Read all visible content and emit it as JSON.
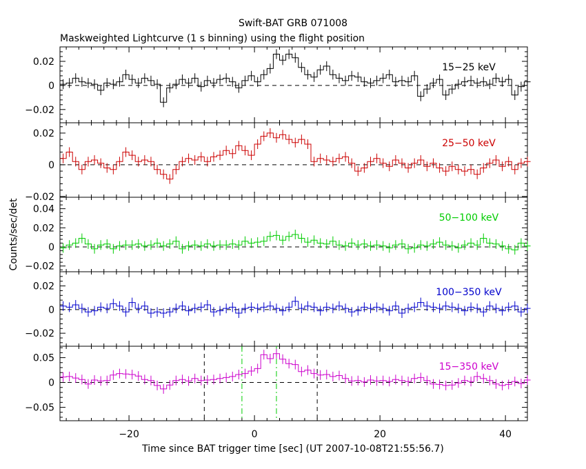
{
  "chart_data": {
    "type": "line",
    "title": "Swift-BAT GRB 071008",
    "subtitle": "Maskweighted Lightcurve (1 s binning) using the flight position",
    "xlabel": "Time since BAT trigger time [sec] (UT 2007-10-08T21:55:56.7)",
    "ylabel": "Counts/sec/det",
    "xlim": [
      -31,
      43.5
    ],
    "xticks": [
      -20,
      0,
      20,
      40
    ],
    "xtick_labels": [
      "−20",
      "0",
      "20",
      "40"
    ],
    "grid": false,
    "panels": [
      {
        "name": "15−25 keV",
        "color": "#000000",
        "ylim": [
          -0.031,
          0.032
        ],
        "yticks": [
          -0.02,
          0,
          0.02
        ],
        "ytick_labels": [
          "−0.02",
          "0",
          "0.02"
        ],
        "x_start": -31,
        "values": [
          0.001,
          0.002,
          0.006,
          0.003,
          0.002,
          0.001,
          -0.004,
          0.002,
          0.001,
          0.003,
          0.009,
          0.005,
          0.002,
          0.006,
          0.004,
          0.001,
          -0.014,
          -0.002,
          0.001,
          0.005,
          0.002,
          0.006,
          -0.001,
          0.004,
          0.002,
          0.005,
          0.006,
          0.003,
          -0.002,
          0.004,
          0.008,
          0.003,
          0.009,
          0.014,
          0.026,
          0.021,
          0.026,
          0.023,
          0.015,
          0.009,
          0.007,
          0.013,
          0.016,
          0.009,
          0.006,
          0.004,
          0.008,
          0.007,
          0.003,
          0.002,
          0.004,
          0.006,
          0.009,
          0.003,
          0.004,
          0.003,
          0.008,
          -0.009,
          -0.003,
          0.002,
          0.005,
          -0.008,
          -0.003,
          0.001,
          0.003,
          0.004,
          0.002,
          0.003,
          0.001,
          0.006,
          0.003,
          0.005,
          -0.008,
          -0.001,
          0.003
        ]
      },
      {
        "name": "25−50 keV",
        "color": "#cc0000",
        "ylim": [
          -0.0205,
          0.0265
        ],
        "yticks": [
          -0.02,
          0,
          0.02
        ],
        "ytick_labels": [
          "−0.02",
          "0",
          "0.02"
        ],
        "x_start": -31,
        "values": [
          0.004,
          0.008,
          0.002,
          -0.003,
          0.002,
          0.003,
          0.001,
          -0.002,
          -0.003,
          0.002,
          0.008,
          0.006,
          0.002,
          0.003,
          0.002,
          -0.003,
          -0.006,
          -0.009,
          -0.003,
          0.002,
          0.004,
          0.003,
          0.005,
          0.002,
          0.005,
          0.006,
          0.009,
          0.007,
          0.012,
          0.009,
          0.006,
          0.013,
          0.018,
          0.02,
          0.017,
          0.019,
          0.016,
          0.014,
          0.016,
          0.013,
          0.002,
          0.004,
          0.003,
          0.002,
          0.004,
          0.005,
          0.001,
          -0.004,
          -0.002,
          0.002,
          0.004,
          0.001,
          -0.001,
          0.003,
          0.001,
          -0.002,
          0.001,
          0.003,
          -0.001,
          0.001,
          -0.002,
          -0.004,
          -0.001,
          -0.003,
          -0.004,
          -0.003,
          -0.006,
          -0.002,
          0.001,
          0.003,
          -0.001,
          0.002,
          -0.003,
          0.001,
          0.002
        ]
      },
      {
        "name": "50−100 keV",
        "color": "#00cc00",
        "ylim": [
          -0.026,
          0.052
        ],
        "yticks": [
          -0.02,
          0,
          0.02,
          0.04
        ],
        "ytick_labels": [
          "−0.02",
          "0",
          "0.02",
          "0.04"
        ],
        "x_start": -31,
        "values": [
          -0.001,
          0.002,
          0.004,
          0.009,
          0.003,
          -0.002,
          0.002,
          0.003,
          -0.002,
          0.001,
          0.002,
          0.002,
          0.003,
          0.001,
          0.002,
          0.004,
          0.001,
          0.003,
          0.006,
          -0.002,
          0.001,
          0.002,
          0.001,
          0.003,
          0.001,
          0.002,
          0.002,
          0.003,
          0.002,
          0.006,
          0.004,
          0.005,
          0.006,
          0.011,
          0.012,
          0.007,
          0.011,
          0.013,
          0.009,
          0.005,
          0.007,
          0.004,
          0.003,
          0.006,
          0.002,
          0.001,
          0.004,
          0.002,
          0.003,
          0.001,
          0.002,
          0.001,
          -0.001,
          0.002,
          0.003,
          -0.002,
          -0.001,
          0.002,
          0.001,
          0.003,
          0.005,
          0.002,
          0.001,
          -0.001,
          0.002,
          0.004,
          0.002,
          0.009,
          0.004,
          0.003,
          0.001,
          -0.002,
          -0.003,
          0.004,
          0.001
        ]
      },
      {
        "name": "100−350 keV",
        "color": "#0000cc",
        "ylim": [
          -0.031,
          0.032
        ],
        "yticks": [
          -0.02,
          0,
          0.02
        ],
        "ytick_labels": [
          "−0.02",
          "0",
          "0.02"
        ],
        "x_start": -31,
        "values": [
          0.003,
          0.002,
          0.004,
          0.001,
          -0.002,
          -0.001,
          0.002,
          0.001,
          0.005,
          0.003,
          -0.002,
          0.006,
          0.001,
          0.003,
          -0.003,
          -0.002,
          -0.003,
          -0.002,
          0.001,
          0.003,
          -0.001,
          0.001,
          0.002,
          0.004,
          -0.002,
          -0.001,
          0.001,
          0.002,
          -0.003,
          0.001,
          0.002,
          0.001,
          0.002,
          0.003,
          0.001,
          -0.001,
          0.002,
          0.007,
          0.001,
          0.003,
          0.002,
          -0.001,
          0.002,
          0.001,
          0.003,
          0.001,
          -0.002,
          -0.001,
          0.002,
          0.001,
          0.002,
          0.001,
          -0.001,
          0.003,
          -0.003,
          0.001,
          0.002,
          0.006,
          0.003,
          0.002,
          0.001,
          0.003,
          0.002,
          0.001,
          -0.001,
          0.002,
          0.001,
          -0.002,
          0.003,
          0.001,
          -0.001,
          0.002,
          0.003,
          -0.002,
          0.001
        ]
      },
      {
        "name": "15−350 keV",
        "color": "#cc00cc",
        "ylim": [
          -0.077,
          0.073
        ],
        "yticks": [
          -0.05,
          0,
          0.05
        ],
        "ytick_labels": [
          "−0.05",
          "0",
          "0.05"
        ],
        "x_start": -31,
        "values": [
          0.011,
          0.012,
          0.009,
          0.006,
          -0.003,
          0.005,
          0.003,
          0.004,
          0.015,
          0.018,
          0.017,
          0.016,
          0.013,
          0.006,
          0.004,
          -0.006,
          -0.013,
          -0.005,
          0.004,
          0.006,
          0.003,
          0.008,
          0.004,
          0.005,
          0.006,
          0.008,
          0.01,
          0.012,
          0.016,
          0.018,
          0.023,
          0.028,
          0.056,
          0.048,
          0.058,
          0.047,
          0.038,
          0.036,
          0.022,
          0.025,
          0.018,
          0.015,
          0.016,
          0.012,
          0.014,
          0.008,
          0.003,
          0.004,
          0.001,
          0.005,
          0.003,
          0.004,
          0.002,
          0.006,
          0.004,
          0.002,
          0.008,
          0.01,
          0.004,
          -0.003,
          -0.004,
          -0.006,
          -0.005,
          -0.001,
          0.004,
          0.002,
          0.012,
          0.008,
          0.004,
          -0.003,
          -0.006,
          -0.004,
          0.002,
          -0.002,
          0.005
        ]
      }
    ],
    "vertical_markers": [
      {
        "x": -8,
        "style": "dashed",
        "color": "#000000"
      },
      {
        "x": 10,
        "style": "dashed",
        "color": "#000000"
      },
      {
        "x": -2,
        "style": "dashdot",
        "color": "#00cc00"
      },
      {
        "x": 3.5,
        "style": "dashdot",
        "color": "#00cc00"
      }
    ]
  }
}
